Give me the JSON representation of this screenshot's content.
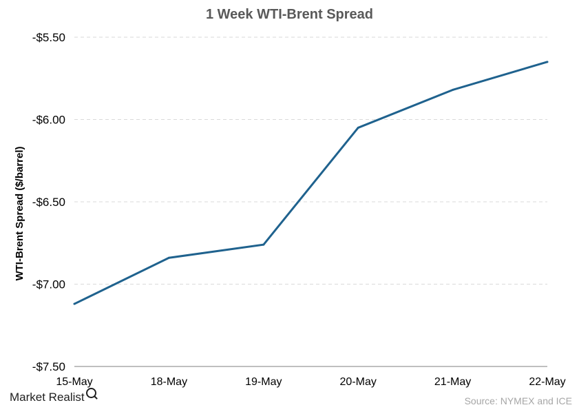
{
  "chart_data": {
    "type": "line",
    "title": "1 Week WTI-Brent Spread",
    "xlabel": "",
    "ylabel": "WTI-Brent Spread ($/barrel)",
    "categories": [
      "15-May",
      "18-May",
      "19-May",
      "20-May",
      "21-May",
      "22-May"
    ],
    "series": [
      {
        "values": [
          -7.12,
          -6.84,
          -6.76,
          -6.05,
          -5.82,
          -5.65
        ]
      }
    ],
    "ylim": [
      -7.5,
      -5.5
    ],
    "yticks": [
      -5.5,
      -6.0,
      -6.5,
      -7.0,
      -7.5
    ],
    "ytick_labels": [
      "-$5.50",
      "-$6.00",
      "-$6.50",
      "-$7.00",
      "-$7.50"
    ],
    "grid": true,
    "legend": "none",
    "colors": {
      "line": "#1f628e",
      "grid": "#d9d9d9",
      "axis": "#7f7f7f"
    }
  },
  "footer": {
    "logo_text": "Market Realist",
    "logo_icon": "magnifier-icon",
    "source": "Source: NYMEX and ICE"
  }
}
